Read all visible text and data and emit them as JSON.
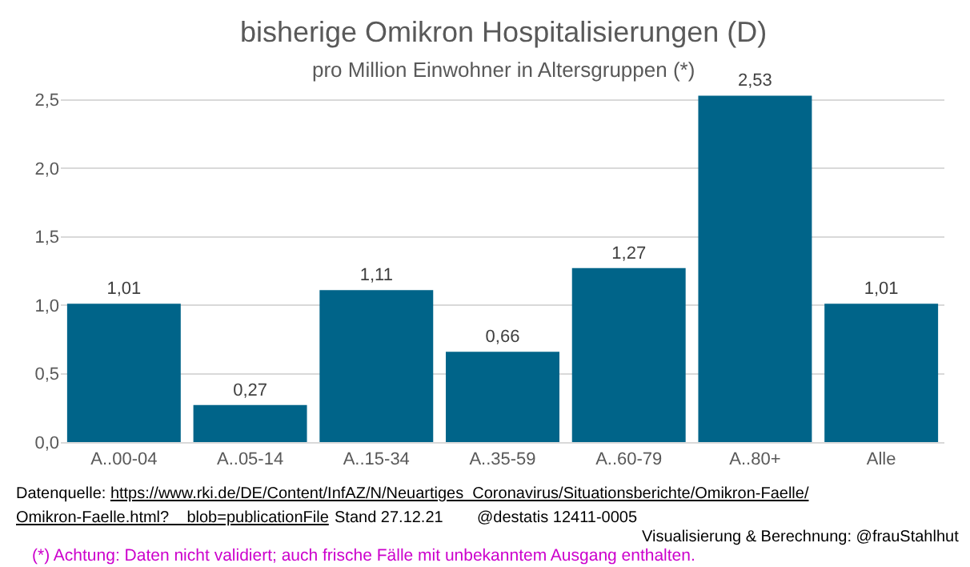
{
  "chart_data": {
    "type": "bar",
    "title": "bisherige Omikron Hospitalisierungen (D)",
    "subtitle": "pro Million Einwohner in Altersgruppen (*)",
    "categories": [
      "A..00-04",
      "A..05-14",
      "A..15-34",
      "A..35-59",
      "A..60-79",
      "A..80+",
      "Alle"
    ],
    "values": [
      1.01,
      0.27,
      1.11,
      0.66,
      1.27,
      2.53,
      1.01
    ],
    "value_labels": [
      "1,01",
      "0,27",
      "1,11",
      "0,66",
      "1,27",
      "2,53",
      "1,01"
    ],
    "color": "#006489",
    "ylim": [
      0,
      2.55
    ],
    "yticks": [
      {
        "value": 0,
        "label": "0,0"
      },
      {
        "value": 0.5,
        "label": "0,5"
      },
      {
        "value": 1,
        "label": "1,0"
      },
      {
        "value": 1.5,
        "label": "1,5"
      },
      {
        "value": 2,
        "label": "2,0"
      },
      {
        "value": 2.5,
        "label": "2,5"
      }
    ],
    "grid": "y",
    "annotations": [
      "Datenquelle: https://www.rki.de/DE/Content/InfAZ/N/Neuartiges_Coronavirus/Situationsberichte/Omikron-Faelle/",
      "Omikron-Faelle.html?__blob=publicationFile",
      "Stand 27.12.21",
      "@destatis 12411-0005",
      "Visualisierung & Berechnung: @frauStahlhut",
      "(*) Achtung: Daten nicht validiert; auch frische Fälle mit unbekanntem Ausgang enthalten."
    ]
  }
}
